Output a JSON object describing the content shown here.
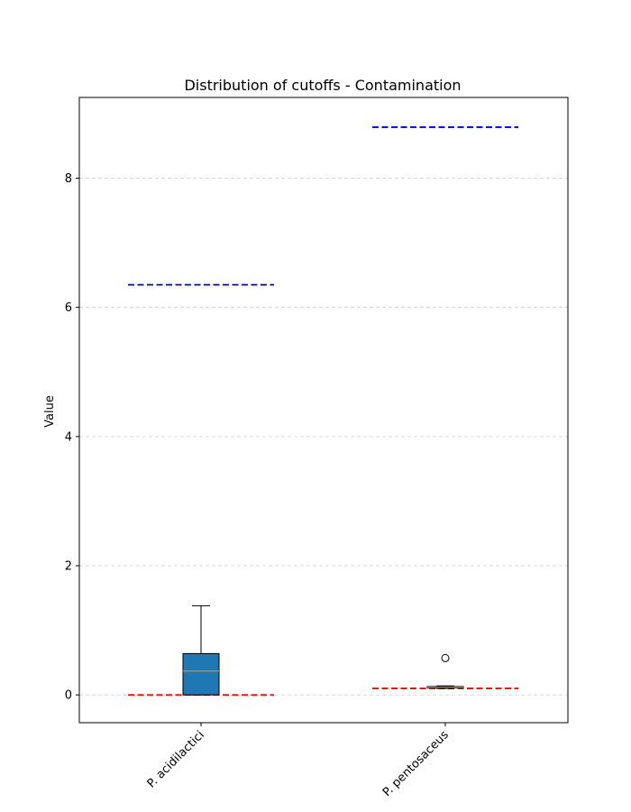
{
  "chart_data": {
    "type": "box",
    "title": "Distribution of cutoffs - Contamination",
    "xlabel": "",
    "ylabel": "Value",
    "ylim": [
      -0.43,
      9.25
    ],
    "yticks": [
      0,
      2,
      4,
      6,
      8
    ],
    "grid": "y-dashed",
    "categories": [
      "P. acidilactici",
      "P. pentosaceus"
    ],
    "boxes": [
      {
        "category": "P. acidilactici",
        "whisker_low": 0.0,
        "q1": 0.0,
        "median": 0.37,
        "q3": 0.64,
        "whisker_high": 1.38,
        "outliers": []
      },
      {
        "category": "P. pentosaceus",
        "whisker_low": 0.1,
        "q1": 0.11,
        "median": 0.12,
        "q3": 0.13,
        "whisker_high": 0.14,
        "outliers": [
          0.57
        ]
      }
    ],
    "reference_lines": [
      {
        "category": "P. acidilactici",
        "color": "#0000cc",
        "style": "dashed",
        "value": 6.35
      },
      {
        "category": "P. acidilactici",
        "color": "#ff0000",
        "style": "dashed",
        "value": 0.0
      },
      {
        "category": "P. pentosaceus",
        "color": "#0000cc",
        "style": "dashed",
        "value": 8.79
      },
      {
        "category": "P. pentosaceus",
        "color": "#ff0000",
        "style": "dashed",
        "value": 0.1
      }
    ],
    "colors": {
      "box_fill": "#1f77b4",
      "median": "#ff7f0e",
      "grid": "#cccccc"
    }
  }
}
